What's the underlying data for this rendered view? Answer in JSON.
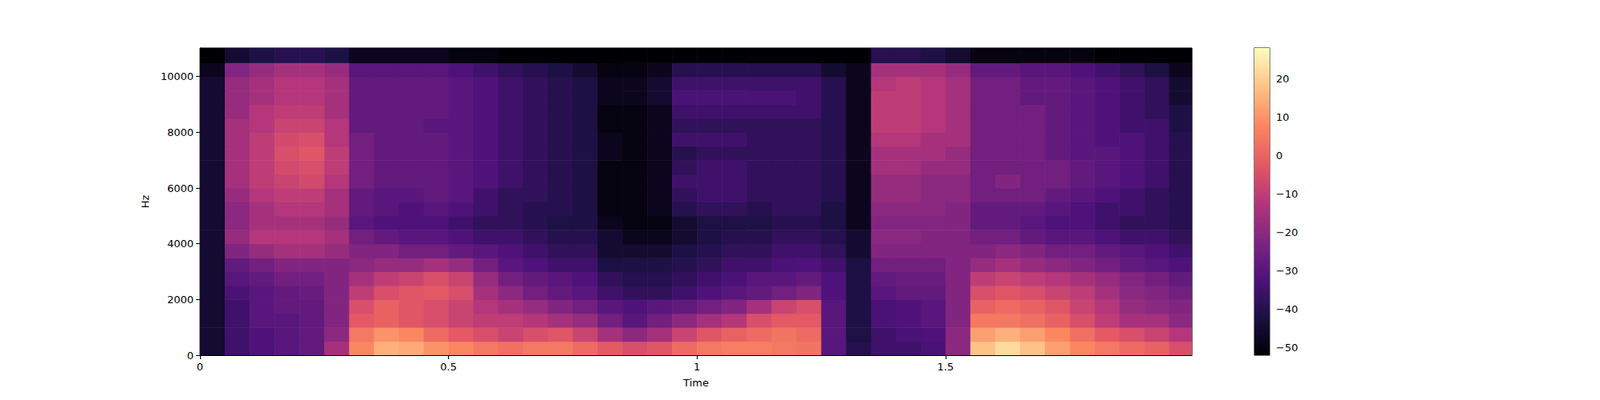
{
  "chart_data": {
    "type": "heatmap",
    "x_label": "Time",
    "y_label": "Hz",
    "xlim": [
      0,
      1.996
    ],
    "ylim": [
      0,
      11025
    ],
    "xticks": [
      0,
      0.5,
      1,
      1.5
    ],
    "yticks": [
      0,
      2000,
      4000,
      6000,
      8000,
      10000
    ],
    "x_bins": [
      0,
      0.05,
      0.1,
      0.15,
      0.2,
      0.25,
      0.3,
      0.35,
      0.4,
      0.45,
      0.5,
      0.55,
      0.6,
      0.65,
      0.7,
      0.75,
      0.8,
      0.85,
      0.9,
      0.95,
      1.0,
      1.05,
      1.1,
      1.15,
      1.2,
      1.25,
      1.3,
      1.35,
      1.4,
      1.45,
      1.5,
      1.55,
      1.6,
      1.65,
      1.7,
      1.75,
      1.8,
      1.85,
      1.9,
      1.95,
      2.0
    ],
    "y_bins": [
      0,
      500,
      1000,
      1500,
      2000,
      2500,
      3000,
      3500,
      4000,
      4500,
      5000,
      5500,
      6000,
      6500,
      7000,
      7500,
      8000,
      8500,
      9000,
      9500,
      10000,
      10500,
      11025
    ],
    "cells": [
      [
        -45,
        -35,
        -32,
        -30,
        -28,
        -15,
        8,
        15,
        14,
        10,
        8,
        5,
        3,
        5,
        5,
        2,
        -2,
        -5,
        -3,
        2,
        5,
        6,
        6,
        5,
        4,
        -30,
        -40,
        -35,
        -35,
        -33,
        -20,
        18,
        22,
        18,
        12,
        8,
        5,
        2,
        0,
        -5
      ],
      [
        -45,
        -35,
        -32,
        -30,
        -28,
        -20,
        5,
        10,
        8,
        2,
        -2,
        -5,
        -8,
        -5,
        -3,
        -8,
        -15,
        -20,
        -15,
        -8,
        -3,
        0,
        2,
        4,
        2,
        -30,
        -42,
        -35,
        -33,
        -32,
        -20,
        12,
        15,
        12,
        8,
        3,
        -2,
        -5,
        -8,
        -12
      ],
      [
        -45,
        -35,
        -30,
        -30,
        -28,
        -22,
        -2,
        0,
        -3,
        -5,
        -8,
        -10,
        -10,
        -12,
        -15,
        -18,
        -25,
        -30,
        -25,
        -20,
        -15,
        -12,
        -5,
        -2,
        -2,
        -30,
        -42,
        -33,
        -32,
        -30,
        -22,
        5,
        5,
        3,
        0,
        -5,
        -10,
        -15,
        -15,
        -20
      ],
      [
        -45,
        -35,
        -30,
        -28,
        -28,
        -22,
        -5,
        0,
        -3,
        -5,
        -8,
        -12,
        -15,
        -18,
        -22,
        -25,
        -30,
        -32,
        -30,
        -28,
        -25,
        -22,
        -15,
        -8,
        -5,
        -30,
        -42,
        -33,
        -32,
        -30,
        -22,
        0,
        2,
        0,
        -3,
        -8,
        -12,
        -18,
        -20,
        -22
      ],
      [
        -45,
        -33,
        -30,
        -28,
        -27,
        -22,
        -10,
        -5,
        -3,
        -2,
        -5,
        -15,
        -20,
        -25,
        -28,
        -30,
        -35,
        -38,
        -38,
        -35,
        -32,
        -30,
        -28,
        -25,
        -22,
        -32,
        -42,
        -30,
        -28,
        -28,
        -22,
        -5,
        -3,
        -5,
        -8,
        -10,
        -15,
        -20,
        -22,
        -25
      ],
      [
        -45,
        -30,
        -28,
        -25,
        -25,
        -22,
        -15,
        -10,
        -8,
        -5,
        -8,
        -18,
        -25,
        -28,
        -30,
        -32,
        -38,
        -40,
        -40,
        -38,
        -35,
        -33,
        -30,
        -30,
        -28,
        -32,
        -42,
        -28,
        -27,
        -27,
        -22,
        -10,
        -8,
        -10,
        -12,
        -15,
        -18,
        -22,
        -25,
        -28
      ],
      [
        -45,
        -28,
        -25,
        -22,
        -22,
        -22,
        -20,
        -18,
        -18,
        -15,
        -18,
        -25,
        -30,
        -32,
        -35,
        -35,
        -42,
        -42,
        -42,
        -40,
        -38,
        -35,
        -35,
        -33,
        -32,
        -35,
        -42,
        -25,
        -25,
        -25,
        -22,
        -18,
        -15,
        -18,
        -20,
        -22,
        -25,
        -28,
        -30,
        -32
      ],
      [
        -45,
        -22,
        -18,
        -15,
        -15,
        -18,
        -22,
        -22,
        -25,
        -25,
        -28,
        -30,
        -32,
        -35,
        -38,
        -38,
        -45,
        -45,
        -45,
        -42,
        -40,
        -38,
        -38,
        -35,
        -35,
        -38,
        -45,
        -22,
        -22,
        -22,
        -22,
        -22,
        -20,
        -22,
        -25,
        -25,
        -28,
        -30,
        -32,
        -35
      ],
      [
        -45,
        -18,
        -12,
        -12,
        -12,
        -15,
        -25,
        -28,
        -30,
        -30,
        -32,
        -35,
        -35,
        -38,
        -40,
        -40,
        -45,
        -48,
        -48,
        -45,
        -42,
        -40,
        -40,
        -38,
        -38,
        -40,
        -45,
        -20,
        -20,
        -22,
        -22,
        -25,
        -25,
        -28,
        -30,
        -30,
        -32,
        -35,
        -35,
        -38
      ],
      [
        -45,
        -20,
        -15,
        -15,
        -15,
        -18,
        -30,
        -32,
        -32,
        -32,
        -35,
        -38,
        -38,
        -40,
        -42,
        -42,
        -48,
        -50,
        -50,
        -45,
        -42,
        -42,
        -42,
        -40,
        -40,
        -42,
        -48,
        -22,
        -22,
        -22,
        -22,
        -28,
        -28,
        -30,
        -32,
        -32,
        -35,
        -38,
        -38,
        -40
      ],
      [
        -45,
        -20,
        -15,
        -12,
        -12,
        -15,
        -28,
        -30,
        -32,
        -30,
        -32,
        -35,
        -38,
        -40,
        -40,
        -42,
        -50,
        -50,
        -48,
        -40,
        -38,
        -38,
        -40,
        -38,
        -38,
        -42,
        -48,
        -20,
        -20,
        -20,
        -22,
        -28,
        -28,
        -28,
        -30,
        -32,
        -35,
        -35,
        -38,
        -40
      ],
      [
        -45,
        -18,
        -12,
        -10,
        -10,
        -15,
        -28,
        -30,
        -30,
        -28,
        -30,
        -35,
        -38,
        -38,
        -40,
        -42,
        -50,
        -50,
        -48,
        -38,
        -35,
        -35,
        -38,
        -38,
        -38,
        -40,
        -48,
        -18,
        -18,
        -20,
        -20,
        -25,
        -25,
        -25,
        -28,
        -30,
        -32,
        -35,
        -38,
        -40
      ],
      [
        -45,
        -15,
        -10,
        -8,
        -6,
        -12,
        -25,
        -28,
        -28,
        -28,
        -30,
        -32,
        -35,
        -38,
        -40,
        -42,
        -50,
        -50,
        -48,
        -35,
        -35,
        -35,
        -38,
        -38,
        -38,
        -40,
        -48,
        -18,
        -18,
        -20,
        -20,
        -25,
        -22,
        -25,
        -25,
        -28,
        -30,
        -32,
        -35,
        -40
      ],
      [
        -45,
        -15,
        -10,
        -6,
        -5,
        -10,
        -25,
        -28,
        -28,
        -28,
        -30,
        -32,
        -35,
        -38,
        -40,
        -42,
        -50,
        -50,
        -48,
        -38,
        -35,
        -35,
        -38,
        -38,
        -38,
        -40,
        -48,
        -15,
        -15,
        -18,
        -18,
        -25,
        -25,
        -25,
        -25,
        -28,
        -30,
        -32,
        -35,
        -40
      ],
      [
        -45,
        -15,
        -10,
        -5,
        -3,
        -10,
        -25,
        -28,
        -28,
        -28,
        -30,
        -32,
        -35,
        -38,
        -40,
        -42,
        -48,
        -50,
        -48,
        -40,
        -38,
        -38,
        -38,
        -38,
        -38,
        -40,
        -48,
        -15,
        -15,
        -15,
        -18,
        -25,
        -25,
        -25,
        -28,
        -30,
        -30,
        -32,
        -35,
        -40
      ],
      [
        -45,
        -15,
        -10,
        -6,
        -5,
        -12,
        -25,
        -28,
        -28,
        -28,
        -30,
        -32,
        -35,
        -38,
        -40,
        -42,
        -48,
        -50,
        -48,
        -35,
        -35,
        -35,
        -38,
        -38,
        -38,
        -40,
        -48,
        -12,
        -12,
        -15,
        -15,
        -25,
        -25,
        -25,
        -28,
        -30,
        -32,
        -32,
        -35,
        -40
      ],
      [
        -45,
        -15,
        -12,
        -8,
        -8,
        -12,
        -28,
        -28,
        -28,
        -30,
        -30,
        -32,
        -35,
        -38,
        -40,
        -42,
        -50,
        -50,
        -48,
        -38,
        -38,
        -38,
        -38,
        -38,
        -38,
        -40,
        -48,
        -10,
        -10,
        -12,
        -15,
        -25,
        -25,
        -25,
        -28,
        -30,
        -32,
        -35,
        -35,
        -42
      ],
      [
        -45,
        -18,
        -12,
        -10,
        -10,
        -15,
        -28,
        -28,
        -28,
        -28,
        -30,
        -32,
        -35,
        -38,
        -40,
        -42,
        -50,
        -50,
        -48,
        -35,
        -35,
        -35,
        -35,
        -35,
        -35,
        -40,
        -48,
        -10,
        -10,
        -12,
        -15,
        -25,
        -25,
        -25,
        -28,
        -30,
        -32,
        -35,
        -38,
        -42
      ],
      [
        -45,
        -18,
        -15,
        -12,
        -12,
        -15,
        -28,
        -28,
        -28,
        -28,
        -30,
        -32,
        -35,
        -38,
        -40,
        -42,
        -48,
        -48,
        -45,
        -33,
        -33,
        -33,
        -33,
        -33,
        -35,
        -40,
        -48,
        -10,
        -10,
        -12,
        -15,
        -25,
        -25,
        -28,
        -28,
        -30,
        -32,
        -35,
        -38,
        -45
      ],
      [
        -45,
        -18,
        -15,
        -12,
        -12,
        -15,
        -28,
        -28,
        -28,
        -28,
        -30,
        -32,
        -35,
        -38,
        -40,
        -42,
        -48,
        -48,
        -45,
        -35,
        -35,
        -35,
        -35,
        -35,
        -35,
        -40,
        -48,
        -12,
        -10,
        -12,
        -15,
        -25,
        -25,
        -28,
        -28,
        -30,
        -32,
        -35,
        -38,
        -45
      ],
      [
        -48,
        -22,
        -18,
        -15,
        -15,
        -18,
        -30,
        -30,
        -30,
        -30,
        -32,
        -35,
        -38,
        -40,
        -42,
        -45,
        -50,
        -50,
        -48,
        -40,
        -40,
        -40,
        -40,
        -40,
        -40,
        -45,
        -48,
        -15,
        -15,
        -15,
        -18,
        -28,
        -28,
        -30,
        -30,
        -32,
        -35,
        -38,
        -42,
        -48
      ],
      [
        -52,
        -45,
        -42,
        -40,
        -40,
        -42,
        -48,
        -48,
        -48,
        -48,
        -50,
        -50,
        -52,
        -52,
        -52,
        -52,
        -52,
        -52,
        -52,
        -52,
        -52,
        -52,
        -52,
        -52,
        -52,
        -52,
        -52,
        -40,
        -40,
        -42,
        -45,
        -50,
        -50,
        -50,
        -50,
        -50,
        -52,
        -52,
        -52,
        -52
      ]
    ],
    "colorbar": {
      "range": [
        -52,
        28
      ],
      "ticks": [
        {
          "value": -50,
          "label": "−50"
        },
        {
          "value": -40,
          "label": "−40"
        },
        {
          "value": -30,
          "label": "−30"
        },
        {
          "value": -20,
          "label": "−20"
        },
        {
          "value": -10,
          "label": "−10"
        },
        0,
        10,
        20
      ]
    }
  }
}
